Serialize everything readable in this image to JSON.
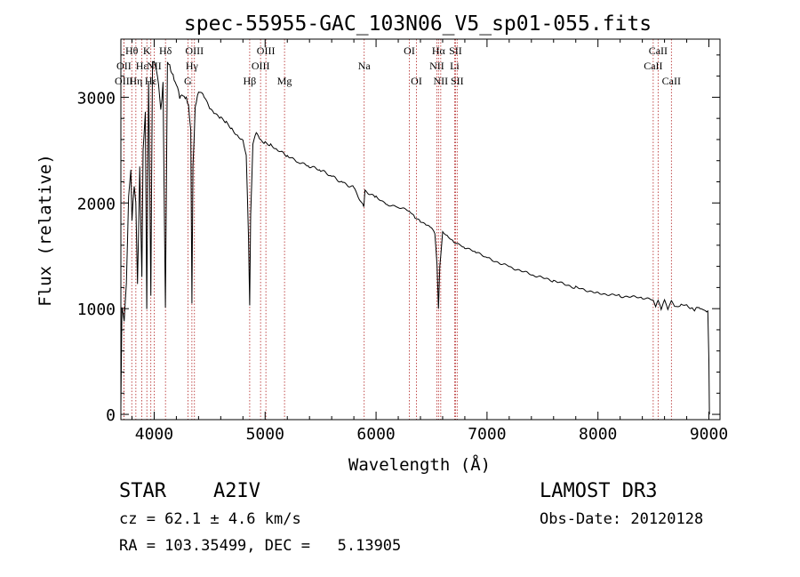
{
  "chart_data": {
    "type": "line",
    "title": "spec-55955-GAC_103N06_V5_sp01-055.fits",
    "xlabel": "Wavelength (Å)",
    "ylabel": "Flux (relative)",
    "xlim": [
      3700,
      9100
    ],
    "ylim": [
      -50,
      3550
    ],
    "xticks": [
      4000,
      5000,
      6000,
      7000,
      8000,
      9000
    ],
    "yticks": [
      0,
      1000,
      2000,
      3000
    ],
    "grid": false,
    "series": [
      {
        "name": "flux",
        "x": [
          3700,
          3710,
          3730,
          3750,
          3770,
          3790,
          3800,
          3820,
          3835,
          3850,
          3870,
          3889,
          3900,
          3920,
          3933,
          3950,
          3970,
          3985,
          4000,
          4020,
          4040,
          4060,
          4080,
          4101,
          4120,
          4150,
          4180,
          4200,
          4230,
          4260,
          4290,
          4310,
          4330,
          4340,
          4350,
          4370,
          4400,
          4450,
          4500,
          4550,
          4600,
          4650,
          4700,
          4750,
          4800,
          4830,
          4850,
          4861,
          4870,
          4890,
          4920,
          4950,
          5000,
          5050,
          5100,
          5200,
          5300,
          5400,
          5500,
          5600,
          5700,
          5800,
          5890,
          5900,
          6000,
          6100,
          6200,
          6300,
          6350,
          6400,
          6450,
          6500,
          6530,
          6550,
          6563,
          6575,
          6600,
          6650,
          6700,
          6800,
          6900,
          7000,
          7200,
          7400,
          7600,
          7800,
          8000,
          8200,
          8400,
          8498,
          8520,
          8542,
          8570,
          8600,
          8630,
          8662,
          8700,
          8750,
          8800,
          8830,
          8850,
          8870,
          8885,
          8900,
          8920,
          8950,
          8990,
          9000,
          9005
        ],
        "values": [
          80,
          1000,
          900,
          1300,
          2100,
          2300,
          1800,
          2150,
          2000,
          1200,
          2300,
          1300,
          2550,
          2900,
          1000,
          3150,
          1150,
          3350,
          3300,
          3200,
          3100,
          2900,
          3150,
          1000,
          3350,
          3300,
          3200,
          3100,
          2950,
          3000,
          3000,
          2900,
          2650,
          1050,
          2400,
          2950,
          3050,
          3000,
          2900,
          2850,
          2800,
          2750,
          2700,
          2650,
          2600,
          2450,
          1700,
          1050,
          1900,
          2550,
          2650,
          2600,
          2580,
          2550,
          2500,
          2450,
          2400,
          2350,
          2300,
          2250,
          2200,
          2150,
          1950,
          2100,
          2060,
          1990,
          1960,
          1920,
          1860,
          1830,
          1800,
          1760,
          1700,
          1400,
          1000,
          1400,
          1720,
          1680,
          1640,
          1580,
          1530,
          1480,
          1400,
          1320,
          1260,
          1200,
          1150,
          1120,
          1100,
          1080,
          1020,
          1090,
          1000,
          1080,
          980,
          1070,
          1020,
          1040,
          1030,
          1000,
          1020,
          990,
          1010,
          1005,
          1000,
          990,
          970,
          500,
          0
        ]
      }
    ],
    "lines": [
      {
        "label": "Hθ",
        "x": 3798,
        "row": 1
      },
      {
        "label": "OII",
        "x": 3727,
        "row": 2
      },
      {
        "label": "OIII",
        "x": 3727,
        "row": 3
      },
      {
        "label": "Hη",
        "x": 3835,
        "row": 3
      },
      {
        "label": "K",
        "x": 3934,
        "row": 1
      },
      {
        "label": "Hε",
        "x": 3889,
        "row": 2
      },
      {
        "label": "Hε",
        "x": 3970,
        "row": 3
      },
      {
        "label": "Hδ",
        "x": 4102,
        "row": 1
      },
      {
        "label": "NII",
        "x": 4000,
        "row": 2
      },
      {
        "label": "OIII",
        "x": 4363,
        "row": 1
      },
      {
        "label": "Hγ",
        "x": 4340,
        "row": 2
      },
      {
        "label": "G",
        "x": 4304,
        "row": 3
      },
      {
        "label": "OIII",
        "x": 5007,
        "row": 1
      },
      {
        "label": "OIII",
        "x": 4959,
        "row": 2
      },
      {
        "label": "Hβ",
        "x": 4861,
        "row": 3
      },
      {
        "label": "Mg",
        "x": 5175,
        "row": 3
      },
      {
        "label": "Na",
        "x": 5893,
        "row": 2
      },
      {
        "label": "OI",
        "x": 6300,
        "row": 1
      },
      {
        "label": "OI",
        "x": 6364,
        "row": 3
      },
      {
        "label": "Hα",
        "x": 6563,
        "row": 1
      },
      {
        "label": "SII",
        "x": 6716,
        "row": 1
      },
      {
        "label": "NII",
        "x": 6548,
        "row": 2
      },
      {
        "label": "Li",
        "x": 6708,
        "row": 2
      },
      {
        "label": "NII",
        "x": 6583,
        "row": 3
      },
      {
        "label": "SII",
        "x": 6731,
        "row": 3
      },
      {
        "label": "CaII",
        "x": 8542,
        "row": 1
      },
      {
        "label": "CaII",
        "x": 8498,
        "row": 2
      },
      {
        "label": "CaII",
        "x": 8662,
        "row": 3
      }
    ]
  },
  "info": {
    "object_type": "STAR",
    "spectral_class": "A2IV",
    "survey": "LAMOST DR3",
    "cz": "cz = 62.1 ± 4.6 km/s",
    "obs_date": "Obs-Date: 20120128",
    "coords": "RA = 103.35499, DEC =   5.13905"
  }
}
